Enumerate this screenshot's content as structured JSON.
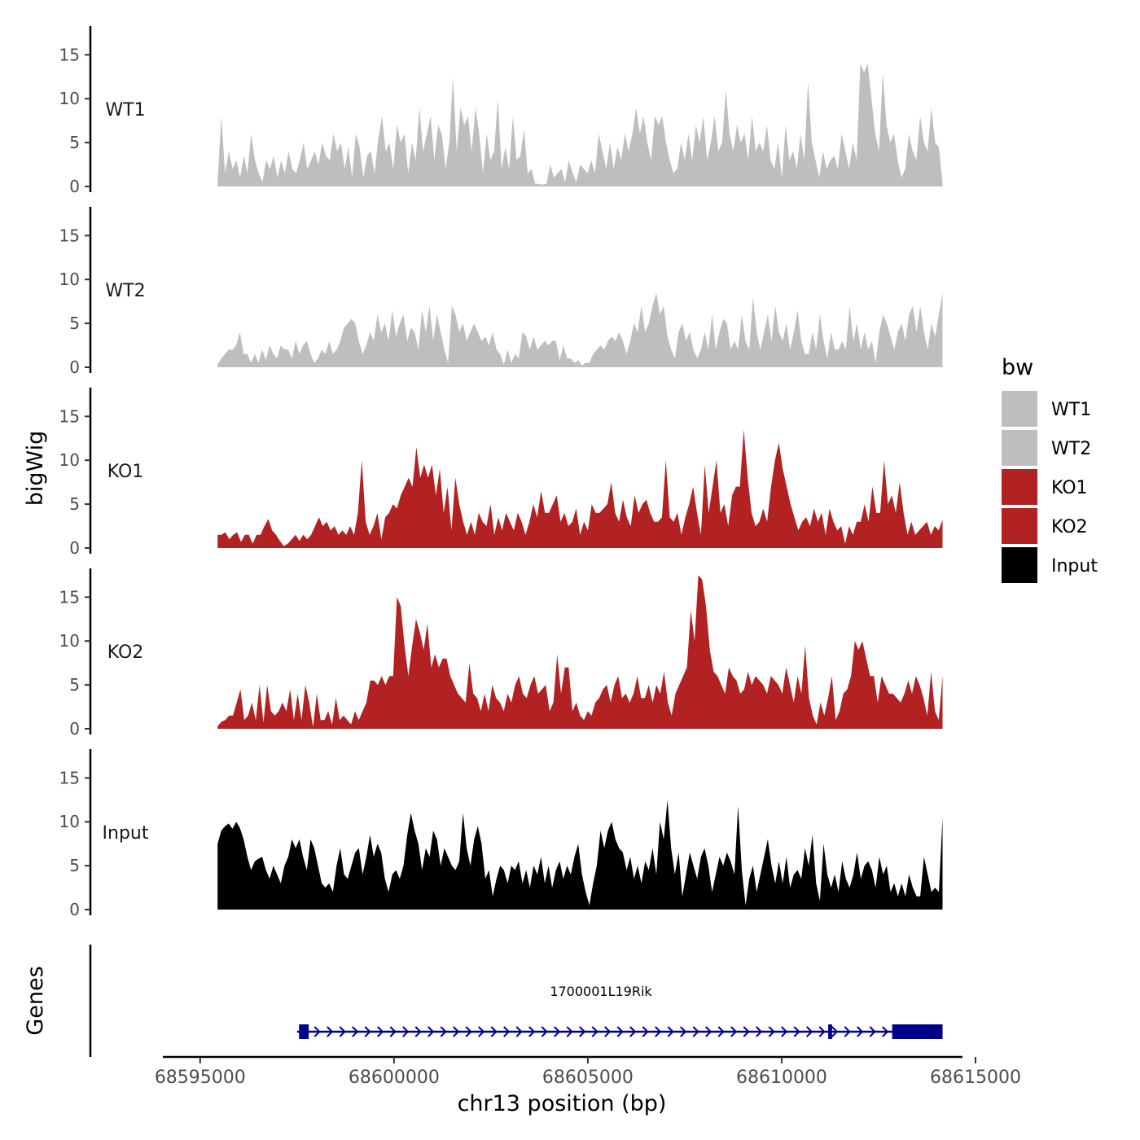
{
  "chart_data": {
    "type": "area",
    "xlabel": "chr13 position (bp)",
    "ylabel": "bigWig",
    "genes_ylabel": "Genes",
    "xlim": [
      68594500,
      68615000
    ],
    "x_ticks": [
      68595000,
      68600000,
      68605000,
      68610000,
      68615000
    ],
    "x_tick_labels": [
      "68595000",
      "68600000",
      "68605000",
      "68610000",
      "68615000"
    ],
    "ylim": [
      0,
      18
    ],
    "y_ticks": [
      0,
      5,
      10,
      15
    ],
    "y_tick_labels": [
      "0",
      "5",
      "10",
      "15"
    ],
    "track_start": 68595450,
    "track_end": 68614150,
    "legend": {
      "title": "bw",
      "entries": [
        {
          "label": "WT1",
          "color": "#bebebe"
        },
        {
          "label": "WT2",
          "color": "#bebebe"
        },
        {
          "label": "KO1",
          "color": "#b22222"
        },
        {
          "label": "KO2",
          "color": "#b22222"
        },
        {
          "label": "Input",
          "color": "#000000"
        }
      ]
    },
    "series": [
      {
        "name": "WT1",
        "color": "#bebebe",
        "values": [
          0.5,
          8,
          1.5,
          4,
          2,
          3,
          1,
          3.5,
          1.5,
          6,
          3,
          1.5,
          0.5,
          3,
          2,
          3.5,
          1,
          3,
          1.5,
          4,
          2,
          1.5,
          3,
          5,
          2,
          3,
          4,
          2.5,
          5,
          3.5,
          3,
          6,
          4,
          5,
          2,
          4.5,
          1,
          6,
          4.5,
          1,
          3.5,
          4,
          1.5,
          5.5,
          8,
          4,
          5,
          2,
          7,
          5,
          6,
          1.5,
          5,
          3,
          9,
          4,
          6,
          8,
          3,
          7,
          6,
          2,
          5,
          12.5,
          4,
          9,
          7,
          8,
          4,
          9,
          6,
          1.5,
          6,
          3,
          4,
          10,
          2,
          4.5,
          2,
          8,
          3,
          3.5,
          6.5,
          1.5,
          2,
          0.3,
          0.3,
          0.2,
          0.3,
          2.5,
          1,
          1.5,
          2,
          0.5,
          3,
          1.5,
          0.5,
          2.5,
          2,
          1.5,
          3,
          1.5,
          6,
          4,
          2,
          5,
          2,
          4.5,
          3,
          6,
          4,
          6,
          9,
          6,
          8,
          5,
          3,
          8,
          7,
          8,
          5,
          3,
          1.5,
          2,
          5,
          3,
          6,
          3,
          7,
          5,
          8,
          3,
          5,
          8,
          4,
          5,
          11,
          6,
          4,
          7,
          5,
          6,
          3,
          8,
          4,
          5,
          4,
          7,
          3,
          2,
          5,
          1,
          7,
          3,
          4,
          2,
          6,
          3,
          12,
          5,
          3,
          1,
          4,
          2,
          3,
          3.5,
          2,
          6,
          4,
          2,
          5,
          3,
          14,
          13,
          14,
          10,
          6,
          4,
          13,
          7,
          5,
          6,
          3,
          1,
          2,
          6,
          4,
          3,
          8,
          5,
          4,
          9,
          5,
          4.5,
          0.5
        ]
      },
      {
        "name": "WT2",
        "color": "#bebebe",
        "values": [
          0.3,
          1,
          1.5,
          2,
          2,
          2.5,
          4,
          1.5,
          1.5,
          0.5,
          1.5,
          0.5,
          2,
          0.8,
          2.5,
          1.5,
          1,
          2.5,
          2,
          2,
          1,
          3,
          1.5,
          2.5,
          3,
          1.5,
          0.5,
          1,
          2,
          1.5,
          3,
          1.5,
          2,
          3,
          4.5,
          5,
          5.5,
          5,
          3,
          1.5,
          2.5,
          4,
          3,
          6,
          4,
          5,
          3,
          6.5,
          3.5,
          5,
          6,
          3,
          4.5,
          4,
          2,
          6.5,
          4,
          7,
          3,
          6,
          4,
          2,
          0.5,
          7,
          6,
          4,
          5,
          3,
          4,
          5,
          4,
          3,
          3.5,
          2.5,
          4,
          2,
          1.5,
          0.3,
          2,
          0.5,
          1.5,
          1,
          4,
          3.5,
          2,
          3.5,
          2,
          2.5,
          3,
          2.5,
          3,
          3,
          0.8,
          2.5,
          1,
          1,
          0.5,
          0.8,
          0.2,
          0.5,
          0.5,
          1.5,
          2,
          2.5,
          2,
          3,
          3.5,
          3,
          4,
          3,
          1.5,
          3,
          5,
          4,
          7,
          4,
          5,
          7,
          8.5,
          6,
          7,
          3.5,
          2,
          1,
          4,
          5,
          3,
          4,
          2,
          1,
          2,
          4,
          2,
          6,
          2,
          4,
          5.5,
          5,
          2,
          3,
          2,
          6,
          3,
          2,
          8,
          4,
          2,
          4,
          6,
          3,
          7,
          4,
          3,
          5,
          2,
          4,
          6.5,
          3,
          1.5,
          1.5,
          4,
          2,
          6,
          3,
          1,
          4,
          2,
          2,
          3,
          2,
          7,
          3,
          5,
          2,
          4,
          2,
          3,
          0.5,
          4,
          6,
          5,
          3.5,
          2,
          4,
          5,
          3,
          6,
          7,
          4,
          7,
          4,
          2,
          5,
          3.5,
          6,
          8.5
        ]
      },
      {
        "name": "KO1",
        "color": "#b22222",
        "values": [
          1.5,
          1.5,
          1.8,
          1,
          1.5,
          1.8,
          0.7,
          1.5,
          1.5,
          0.5,
          1.5,
          1.5,
          2.5,
          3.3,
          2,
          1.5,
          0.8,
          0.2,
          0.5,
          1,
          1.5,
          0.8,
          1.5,
          1,
          1.5,
          2.5,
          3.5,
          2.5,
          3,
          2,
          2.5,
          1.5,
          2,
          1.5,
          2.5,
          1.5,
          4,
          10,
          3,
          1.5,
          2.5,
          4,
          1,
          3.5,
          4,
          5,
          4.5,
          6,
          7,
          8,
          7,
          11.5,
          8,
          9.5,
          8,
          9.5,
          6,
          9,
          4,
          7,
          2,
          8,
          5,
          3,
          1.5,
          3,
          1.5,
          4,
          3,
          2.5,
          5,
          1.5,
          3.5,
          2,
          4,
          3,
          2,
          4,
          3,
          1.5,
          3,
          5,
          3.5,
          6.5,
          4,
          4,
          5,
          6,
          3,
          4,
          2.5,
          3,
          4.5,
          1.5,
          3,
          2,
          5,
          4,
          4,
          4.5,
          5,
          7.5,
          4,
          3,
          5.5,
          3.5,
          2.5,
          6,
          4,
          5,
          5.5,
          4,
          3,
          3,
          3.5,
          10,
          3.5,
          3,
          4,
          1.5,
          3.5,
          5,
          7,
          4,
          1.5,
          9.5,
          4,
          7,
          10,
          4,
          5,
          2.5,
          6,
          7,
          7,
          13.5,
          8,
          4,
          2.5,
          3,
          4.5,
          3,
          7,
          10,
          12,
          9,
          7,
          5,
          3.5,
          2,
          3,
          3.5,
          2.5,
          4.5,
          3,
          4,
          1.5,
          4.5,
          3,
          2,
          2.5,
          0.5,
          2.5,
          1.5,
          3,
          3,
          5,
          3,
          7,
          4,
          4,
          10,
          5,
          6,
          4,
          7.5,
          4,
          1.5,
          3,
          1.5,
          2,
          2.5,
          3,
          1.5,
          2.5,
          2,
          3.2
        ]
      },
      {
        "name": "KO2",
        "color": "#b22222",
        "values": [
          0.3,
          0.8,
          1,
          1.5,
          1.5,
          3,
          4.5,
          1,
          1.5,
          3,
          1,
          5,
          0.7,
          5,
          2,
          1.5,
          2,
          3,
          2,
          4.5,
          1,
          4,
          1,
          5,
          3,
          0.2,
          4,
          1,
          1,
          2,
          0.5,
          3.5,
          1,
          1.5,
          1,
          0.5,
          2,
          1,
          2,
          3,
          5.5,
          5.5,
          5,
          6,
          5,
          6,
          6,
          15,
          14,
          9.5,
          6,
          9.5,
          12.5,
          11,
          9,
          12,
          7,
          8.5,
          7,
          8,
          8,
          6,
          5,
          4,
          3.5,
          3,
          7.5,
          4,
          3.5,
          2,
          4,
          2,
          5,
          3.5,
          3,
          2,
          4,
          3,
          5,
          6,
          4,
          3.5,
          5,
          6,
          4,
          4.5,
          5,
          2,
          3,
          8.5,
          4,
          7,
          7,
          2,
          3,
          1.5,
          1,
          2,
          1.5,
          3,
          3.5,
          4.5,
          5,
          3,
          5,
          6,
          3.5,
          4,
          3,
          4,
          6,
          3.5,
          3.5,
          5,
          3,
          5,
          4,
          6.5,
          3,
          1.5,
          4,
          5,
          6,
          7,
          13.5,
          10,
          17.5,
          17,
          14,
          9,
          6.5,
          6,
          5,
          4,
          7,
          6,
          5.5,
          4,
          4.5,
          6.5,
          5,
          6,
          5.5,
          5,
          4,
          6,
          5.5,
          5,
          4,
          7,
          5,
          3,
          6,
          4,
          9.5,
          3.5,
          1.5,
          0.5,
          3,
          1.5,
          3.5,
          6,
          1,
          2,
          4,
          4.5,
          6,
          10,
          9,
          10,
          8,
          6,
          6,
          3,
          6,
          5,
          4,
          4,
          3.5,
          3,
          4,
          5.5,
          4,
          6,
          5,
          3.5,
          1.5,
          6.5,
          2,
          1,
          6
        ]
      },
      {
        "name": "Input",
        "color": "#000000",
        "values": [
          7.5,
          9,
          9.5,
          9.8,
          9.2,
          10,
          9.3,
          8,
          6,
          4.5,
          5.5,
          5.8,
          6,
          4.5,
          3.5,
          5,
          4,
          3,
          5,
          6,
          8,
          7,
          8,
          6,
          4.5,
          8,
          7,
          5,
          3,
          2.5,
          3,
          2,
          5,
          7,
          4,
          3.5,
          5,
          6.5,
          7,
          4,
          6,
          8.5,
          6,
          7.5,
          6.5,
          3.5,
          2,
          4,
          4.5,
          3.5,
          5,
          8.5,
          11,
          9,
          7.5,
          4.5,
          7,
          6,
          9,
          8,
          5,
          7,
          6,
          5,
          4.5,
          5.5,
          11,
          7,
          5,
          8,
          9.5,
          7.5,
          3.5,
          4.5,
          1.5,
          3.5,
          5,
          4.5,
          3,
          5,
          4.5,
          5.5,
          3,
          4.5,
          2.5,
          5,
          4,
          6,
          3,
          5,
          2.5,
          4.5,
          5.5,
          3.5,
          5,
          4,
          6,
          7.5,
          4,
          2,
          0.5,
          3,
          5,
          9,
          7,
          9,
          10,
          8,
          7,
          6.5,
          4.5,
          6,
          3.5,
          5,
          3,
          5.5,
          4.5,
          7,
          4,
          10,
          8,
          12.5,
          7,
          4,
          6.5,
          1.5,
          4,
          6.5,
          5,
          3.5,
          6,
          7,
          5,
          2,
          4,
          6,
          5,
          6.5,
          5.5,
          4,
          11.8,
          4.5,
          0.5,
          3.5,
          5,
          2,
          4,
          6,
          8,
          5,
          3,
          5.5,
          3,
          6,
          2.5,
          4,
          4.5,
          3.5,
          7,
          5,
          8.5,
          3,
          1,
          7.5,
          4,
          2.5,
          4,
          2,
          5.5,
          3.5,
          2.5,
          4,
          6.5,
          3.5,
          5,
          5.5,
          4.5,
          2.5,
          6,
          4,
          5,
          2,
          3,
          1.5,
          3,
          1.5,
          4,
          2.5,
          1.5,
          1.5,
          6,
          4,
          2,
          2.5,
          2,
          10.5
        ]
      }
    ],
    "gene": {
      "name": "1700001L19Rik",
      "strand": "+",
      "color": "#00008b",
      "start": 68597500,
      "end": 68614150,
      "exons": [
        [
          68597550,
          68597800
        ],
        [
          68611200,
          68611300
        ],
        [
          68612850,
          68614150
        ]
      ]
    }
  }
}
